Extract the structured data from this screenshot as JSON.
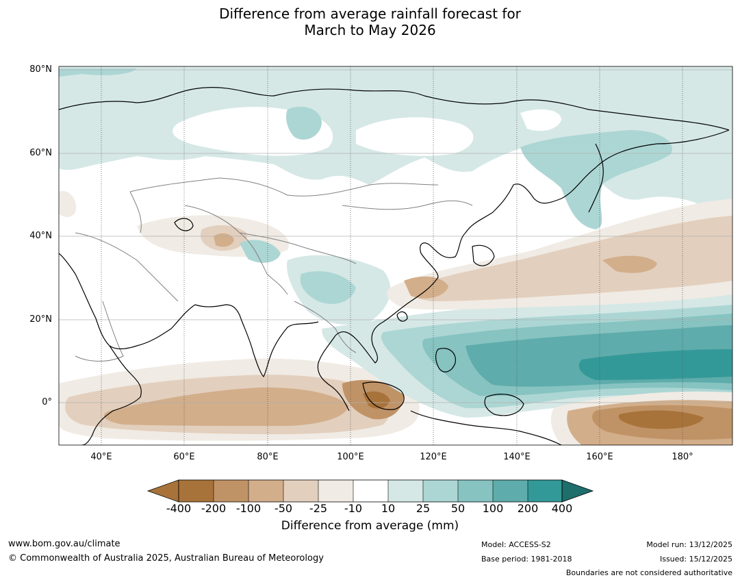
{
  "title": {
    "line1": "Difference from average rainfall forecast for",
    "line2": "March to May 2026"
  },
  "map": {
    "lat_labels": [
      "80°N",
      "60°N",
      "40°N",
      "20°N",
      "0°"
    ],
    "lon_labels": [
      "40°E",
      "60°E",
      "80°E",
      "100°E",
      "120°E",
      "140°E",
      "160°E",
      "180°"
    ],
    "colors": {
      "brown_400": "#a8733a",
      "brown_200": "#c09366",
      "brown_100": "#d2ae8a",
      "brown_50": "#e3cfbd",
      "brown_25": "#f0ebe4",
      "neutral": "#ffffff",
      "teal_10": "#d5e8e6",
      "teal_25": "#acd6d4",
      "teal_50": "#86c3c1",
      "teal_100": "#5eacab",
      "teal_200": "#339998",
      "teal_400": "#1e6e6c",
      "coast": "#000000",
      "border": "#808080",
      "grid": "#b0b0b0"
    }
  },
  "legend": {
    "tick_labels": [
      "-400",
      "-200",
      "-100",
      "-50",
      "-25",
      "-10",
      "10",
      "25",
      "50",
      "100",
      "200",
      "400"
    ],
    "title": "Difference from average (mm)"
  },
  "footer": {
    "website": "www.bom.gov.au/climate",
    "copyright": "© Commonwealth of Australia 2025, Australian Bureau of Meteorology",
    "model": "Model: ACCESS-S2",
    "base_period": "Base period: 1981-2018",
    "model_run": "Model run: 13/12/2025",
    "issued": "Issued: 15/12/2025",
    "disclaimer": "Boundaries are not considered authoritative"
  }
}
